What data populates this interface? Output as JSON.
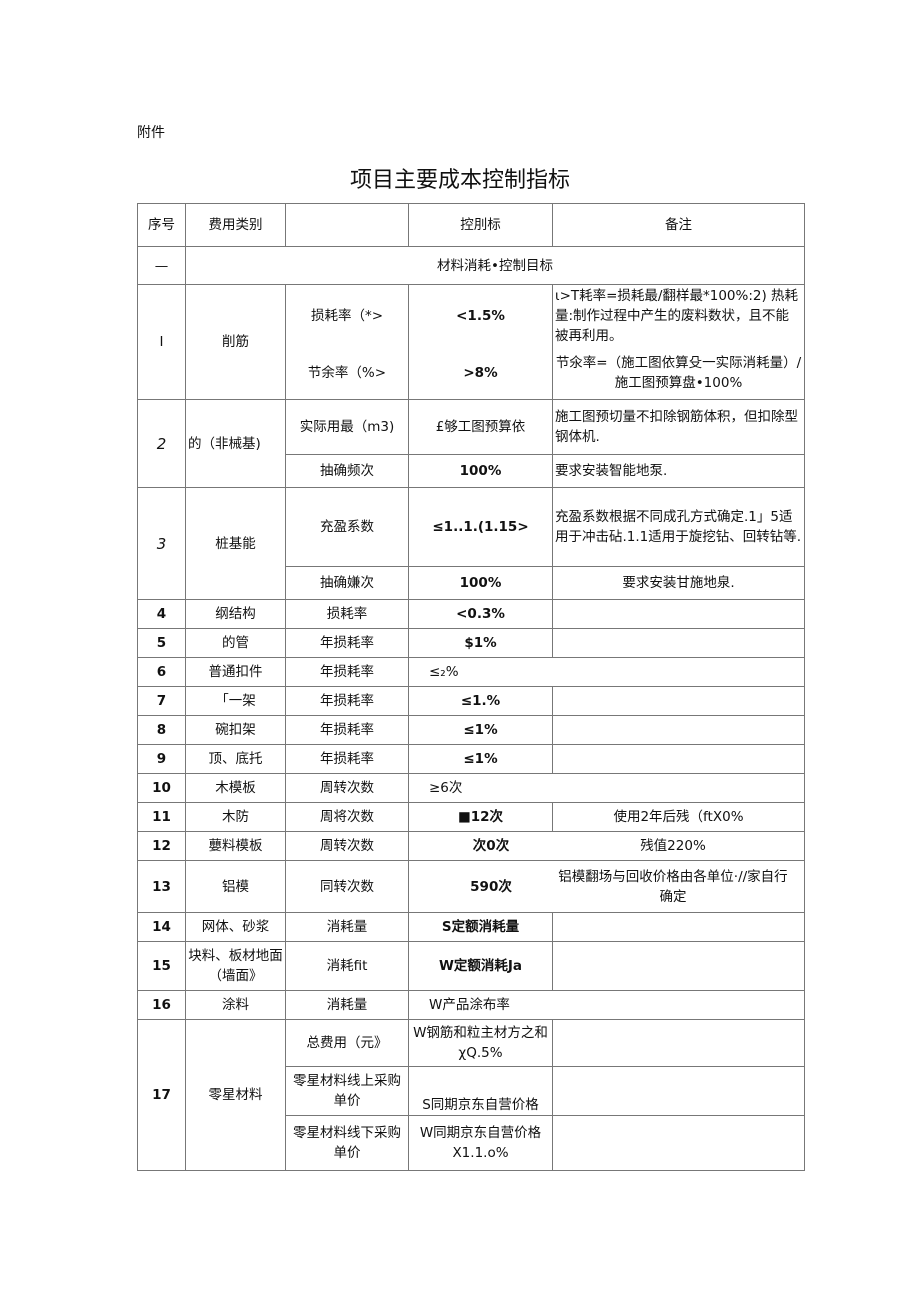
{
  "attachment": "附件",
  "title": "项目主要成本控制指标",
  "header": [
    "序号",
    "费用类别",
    "",
    "控刖标",
    "备注"
  ],
  "section": {
    "no": "—",
    "label": "材料消耗•控制目标"
  },
  "r1": {
    "no": "I",
    "cat": "削筋",
    "a_item": "损耗率（*>",
    "a_val": "<1.5%",
    "a_note": "ι>T耗率=损耗最/翻样最*100%:2) 热耗量:制作过程中产生的废料数状，且不能被再利用。",
    "b_item": "节余率（%>",
    "b_val": ">8%",
    "b_note": "节氽率=（施工图依算殳一实际消耗量）/施工图预算盘•100%"
  },
  "r2": {
    "no": "2",
    "cat": "的（非械基)",
    "a_item": "实际用最（m3)",
    "a_val": "£够工图预算依",
    "a_note": "施工图预切量不扣除钢筋体积，但扣除型钢体机.",
    "b_item": "抽确频次",
    "b_val": "100%",
    "b_note": "要求安装智能地泵."
  },
  "r3": {
    "no": "3",
    "cat": "桩基能",
    "a_item": "充盈系数",
    "a_val": "≤1..1.(1.15>",
    "a_note": "充盈系数根据不同成孔方式确定.1」5适用于冲击砧.1.1适用于旋挖钻、回转钻等.",
    "b_item": "抽确嫌次",
    "b_val": "100%",
    "b_note": "要求安装甘施地泉."
  },
  "rows": [
    {
      "no": "4",
      "cat": "纲结构",
      "item": "损耗率",
      "val": "<0.3%",
      "note": ""
    },
    {
      "no": "5",
      "cat": "的管",
      "item": "年损耗率",
      "val": "$1%",
      "note": ""
    },
    {
      "no": "6",
      "cat": "普通扣件",
      "item": "年损耗率",
      "val": "≤₂%",
      "note": ""
    },
    {
      "no": "7",
      "cat": "「一架",
      "item": "年损耗率",
      "val": "≤1.%",
      "note": ""
    },
    {
      "no": "8",
      "cat": "碗扣架",
      "item": "年损耗率",
      "val": "≤1%",
      "note": ""
    },
    {
      "no": "9",
      "cat": "顶、底托",
      "item": "年损耗率",
      "val": "≤1%",
      "note": ""
    },
    {
      "no": "10",
      "cat": "木模板",
      "item": "周转次数",
      "val": "≥6次",
      "note": ""
    },
    {
      "no": "11",
      "cat": "木防",
      "item": "周将次数",
      "val": "■12次",
      "note": "使用2年后残（ftX0%"
    },
    {
      "no": "12",
      "cat": "蘡料模板",
      "item": "周转次数",
      "val": "次0次",
      "note": "残值220%"
    },
    {
      "no": "13",
      "cat": "铝模",
      "item": "同转次数",
      "val": "590次",
      "note": "铝模翻场与回收价格由各单位·//家自行确定"
    },
    {
      "no": "14",
      "cat": "网体、砂浆",
      "item": "消耗量",
      "val": "S定额消耗量",
      "note": ""
    },
    {
      "no": "15",
      "cat": "块料、板材地面（墙面》",
      "item": "消耗fit",
      "val": "W定额消耗Ja",
      "note": ""
    },
    {
      "no": "16",
      "cat": "涂料",
      "item": "消耗量",
      "val": "W产品涂布率",
      "note": ""
    }
  ],
  "r17": {
    "no": "17",
    "cat": "零星材料",
    "a_item": "总费用（元》",
    "a_val": "W钢筋和粒主材方之和χQ.5%",
    "b_item": "零星材料线上采购单价",
    "b_val": "S同期京东自营价格",
    "c_item": "零星材料线下采购单价",
    "c_val": "W同期京东自营价格X1.1.o%"
  }
}
